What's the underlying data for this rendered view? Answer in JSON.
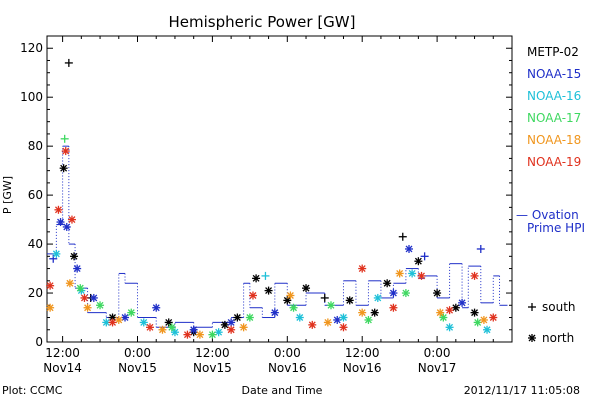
{
  "chart_data": {
    "type": "scatter",
    "title": "Hemispheric Power [GW]",
    "ylabel": "P [GW]",
    "xlabel": "Date and Time",
    "ylim": [
      0,
      125
    ],
    "xlim": [
      "2012-11-14T09:30",
      "2012-11-17T12:00"
    ],
    "y_ticks": [
      0,
      20,
      40,
      60,
      80,
      100,
      120
    ],
    "x_ticks": [
      {
        "time": "2012-11-14T12:00",
        "line1": "12:00",
        "line2": "Nov14"
      },
      {
        "time": "2012-11-15T00:00",
        "line1": "0:00",
        "line2": "Nov15"
      },
      {
        "time": "2012-11-15T12:00",
        "line1": "12:00",
        "line2": "Nov15"
      },
      {
        "time": "2012-11-16T00:00",
        "line1": "0:00",
        "line2": "Nov16"
      },
      {
        "time": "2012-11-16T12:00",
        "line1": "12:00",
        "line2": "Nov16"
      },
      {
        "time": "2012-11-17T00:00",
        "line1": "0:00",
        "line2": "Nov17"
      }
    ],
    "legend": {
      "placement": "right",
      "satellites": [
        {
          "name": "METP-02",
          "color": "#000000"
        },
        {
          "name": "NOAA-15",
          "color": "#1f2fc8"
        },
        {
          "name": "NOAA-16",
          "color": "#1ec0d8"
        },
        {
          "name": "NOAA-17",
          "color": "#3ed860"
        },
        {
          "name": "NOAA-18",
          "color": "#f0961e"
        },
        {
          "name": "NOAA-19",
          "color": "#e0321e"
        }
      ],
      "ovation_line1": "— Ovation",
      "ovation_line2": "Prime HPI",
      "ovation_color": "#1f2fc8",
      "south_label": "south",
      "north_label": "north"
    },
    "series": [
      {
        "name": "METP-02",
        "points": [
          [
            "2012-11-14T12:10",
            71,
            "n"
          ],
          [
            "2012-11-14T13:00",
            114,
            "s"
          ],
          [
            "2012-11-14T13:50",
            35,
            "n"
          ],
          [
            "2012-11-14T16:30",
            18,
            "s"
          ],
          [
            "2012-11-14T20:00",
            10,
            "n"
          ],
          [
            "2012-11-15T05:00",
            8,
            "n"
          ],
          [
            "2012-11-15T09:00",
            4,
            "n"
          ],
          [
            "2012-11-15T14:00",
            7,
            "n"
          ],
          [
            "2012-11-15T16:00",
            10,
            "n"
          ],
          [
            "2012-11-15T19:00",
            26,
            "n"
          ],
          [
            "2012-11-15T21:00",
            21,
            "n"
          ],
          [
            "2012-11-16T00:00",
            17,
            "n"
          ],
          [
            "2012-11-16T03:00",
            22,
            "n"
          ],
          [
            "2012-11-16T06:00",
            18,
            "s"
          ],
          [
            "2012-11-16T10:00",
            17,
            "n"
          ],
          [
            "2012-11-16T14:00",
            12,
            "n"
          ],
          [
            "2012-11-16T16:00",
            24,
            "n"
          ],
          [
            "2012-11-16T18:30",
            43,
            "s"
          ],
          [
            "2012-11-16T21:00",
            33,
            "n"
          ],
          [
            "2012-11-17T00:00",
            20,
            "n"
          ],
          [
            "2012-11-17T03:00",
            14,
            "n"
          ],
          [
            "2012-11-17T06:00",
            12,
            "n"
          ]
        ]
      },
      {
        "name": "NOAA-15",
        "points": [
          [
            "2012-11-14T10:30",
            34,
            "s"
          ],
          [
            "2012-11-14T11:40",
            49,
            "n"
          ],
          [
            "2012-11-14T12:40",
            47,
            "n"
          ],
          [
            "2012-11-14T14:20",
            30,
            "n"
          ],
          [
            "2012-11-14T17:00",
            18,
            "n"
          ],
          [
            "2012-11-14T22:00",
            10,
            "n"
          ],
          [
            "2012-11-15T03:00",
            14,
            "n"
          ],
          [
            "2012-11-15T09:00",
            5,
            "n"
          ],
          [
            "2012-11-15T15:00",
            8,
            "n"
          ],
          [
            "2012-11-15T22:00",
            12,
            "n"
          ],
          [
            "2012-11-16T08:00",
            9,
            "n"
          ],
          [
            "2012-11-16T17:00",
            20,
            "n"
          ],
          [
            "2012-11-16T19:30",
            38,
            "n"
          ],
          [
            "2012-11-16T22:00",
            35,
            "s"
          ],
          [
            "2012-11-17T04:00",
            16,
            "n"
          ],
          [
            "2012-11-17T07:00",
            38,
            "s"
          ]
        ]
      },
      {
        "name": "NOAA-16",
        "points": [
          [
            "2012-11-14T11:00",
            36,
            "n"
          ],
          [
            "2012-11-14T15:00",
            21,
            "n"
          ],
          [
            "2012-11-14T19:00",
            8,
            "n"
          ],
          [
            "2012-11-15T01:00",
            8,
            "n"
          ],
          [
            "2012-11-15T06:00",
            4,
            "n"
          ],
          [
            "2012-11-15T13:00",
            4,
            "n"
          ],
          [
            "2012-11-15T20:30",
            27,
            "s"
          ],
          [
            "2012-11-16T02:00",
            10,
            "n"
          ],
          [
            "2012-11-16T09:00",
            10,
            "n"
          ],
          [
            "2012-11-16T14:30",
            18,
            "n"
          ],
          [
            "2012-11-16T20:00",
            28,
            "n"
          ],
          [
            "2012-11-17T02:00",
            6,
            "n"
          ],
          [
            "2012-11-17T08:00",
            5,
            "n"
          ]
        ]
      },
      {
        "name": "NOAA-17",
        "points": [
          [
            "2012-11-14T12:20",
            83,
            "s"
          ],
          [
            "2012-11-14T14:50",
            22,
            "n"
          ],
          [
            "2012-11-14T18:00",
            15,
            "n"
          ],
          [
            "2012-11-14T23:00",
            12,
            "n"
          ],
          [
            "2012-11-15T05:30",
            6,
            "n"
          ],
          [
            "2012-11-15T12:00",
            3,
            "n"
          ],
          [
            "2012-11-15T18:00",
            10,
            "n"
          ],
          [
            "2012-11-16T01:00",
            14,
            "n"
          ],
          [
            "2012-11-16T07:00",
            15,
            "n"
          ],
          [
            "2012-11-16T13:00",
            9,
            "n"
          ],
          [
            "2012-11-16T19:00",
            20,
            "n"
          ],
          [
            "2012-11-17T01:00",
            10,
            "n"
          ],
          [
            "2012-11-17T06:30",
            8,
            "n"
          ]
        ]
      },
      {
        "name": "NOAA-18",
        "points": [
          [
            "2012-11-14T10:00",
            14,
            "n"
          ],
          [
            "2012-11-14T13:10",
            24,
            "n"
          ],
          [
            "2012-11-14T16:00",
            14,
            "n"
          ],
          [
            "2012-11-14T21:00",
            9,
            "n"
          ],
          [
            "2012-11-15T04:00",
            5,
            "n"
          ],
          [
            "2012-11-15T10:00",
            3,
            "n"
          ],
          [
            "2012-11-15T17:00",
            6,
            "n"
          ],
          [
            "2012-11-16T00:30",
            19,
            "n"
          ],
          [
            "2012-11-16T06:30",
            8,
            "n"
          ],
          [
            "2012-11-16T12:00",
            12,
            "n"
          ],
          [
            "2012-11-16T18:00",
            28,
            "n"
          ],
          [
            "2012-11-17T00:30",
            12,
            "n"
          ],
          [
            "2012-11-17T07:30",
            9,
            "n"
          ]
        ]
      },
      {
        "name": "NOAA-19",
        "points": [
          [
            "2012-11-14T10:00",
            23,
            "n"
          ],
          [
            "2012-11-14T11:20",
            54,
            "n"
          ],
          [
            "2012-11-14T12:30",
            78,
            "n"
          ],
          [
            "2012-11-14T13:30",
            50,
            "n"
          ],
          [
            "2012-11-14T15:30",
            18,
            "n"
          ],
          [
            "2012-11-14T20:00",
            8,
            "n"
          ],
          [
            "2012-11-15T02:00",
            6,
            "n"
          ],
          [
            "2012-11-15T08:00",
            3,
            "n"
          ],
          [
            "2012-11-15T15:00",
            5,
            "n"
          ],
          [
            "2012-11-15T18:30",
            19,
            "n"
          ],
          [
            "2012-11-16T04:00",
            7,
            "n"
          ],
          [
            "2012-11-16T09:00",
            6,
            "n"
          ],
          [
            "2012-11-16T12:00",
            30,
            "n"
          ],
          [
            "2012-11-16T17:00",
            14,
            "n"
          ],
          [
            "2012-11-16T21:30",
            27,
            "n"
          ],
          [
            "2012-11-17T02:00",
            13,
            "n"
          ],
          [
            "2012-11-17T06:00",
            27,
            "n"
          ],
          [
            "2012-11-17T09:00",
            10,
            "n"
          ]
        ]
      }
    ],
    "ovation": [
      [
        "2012-11-14T09:30",
        36
      ],
      [
        "2012-11-14T11:00",
        48
      ],
      [
        "2012-11-14T12:00",
        80
      ],
      [
        "2012-11-14T13:00",
        40
      ],
      [
        "2012-11-14T14:00",
        22
      ],
      [
        "2012-11-14T16:00",
        12
      ],
      [
        "2012-11-14T19:00",
        10
      ],
      [
        "2012-11-14T21:00",
        28
      ],
      [
        "2012-11-14T22:00",
        24
      ],
      [
        "2012-11-15T00:00",
        10
      ],
      [
        "2012-11-15T03:00",
        6
      ],
      [
        "2012-11-15T06:00",
        8
      ],
      [
        "2012-11-15T09:00",
        6
      ],
      [
        "2012-11-15T12:00",
        8
      ],
      [
        "2012-11-15T15:00",
        10
      ],
      [
        "2012-11-15T17:00",
        24
      ],
      [
        "2012-11-15T18:00",
        14
      ],
      [
        "2012-11-15T20:00",
        10
      ],
      [
        "2012-11-15T22:00",
        24
      ],
      [
        "2012-11-16T00:00",
        15
      ],
      [
        "2012-11-16T03:00",
        20
      ],
      [
        "2012-11-16T06:00",
        15
      ],
      [
        "2012-11-16T09:00",
        25
      ],
      [
        "2012-11-16T11:00",
        15
      ],
      [
        "2012-11-16T13:00",
        25
      ],
      [
        "2012-11-16T15:00",
        18
      ],
      [
        "2012-11-16T17:00",
        24
      ],
      [
        "2012-11-16T19:00",
        30
      ],
      [
        "2012-11-16T21:00",
        26
      ],
      [
        "2012-11-16T22:00",
        27
      ],
      [
        "2012-11-17T00:00",
        18
      ],
      [
        "2012-11-17T02:00",
        32
      ],
      [
        "2012-11-17T04:00",
        14
      ],
      [
        "2012-11-17T05:00",
        31
      ],
      [
        "2012-11-17T07:00",
        16
      ],
      [
        "2012-11-17T09:00",
        27
      ],
      [
        "2012-11-17T10:00",
        15
      ]
    ]
  },
  "footer": {
    "left": "Plot: CCMC",
    "right": "2012/11/17 11:05:08"
  }
}
